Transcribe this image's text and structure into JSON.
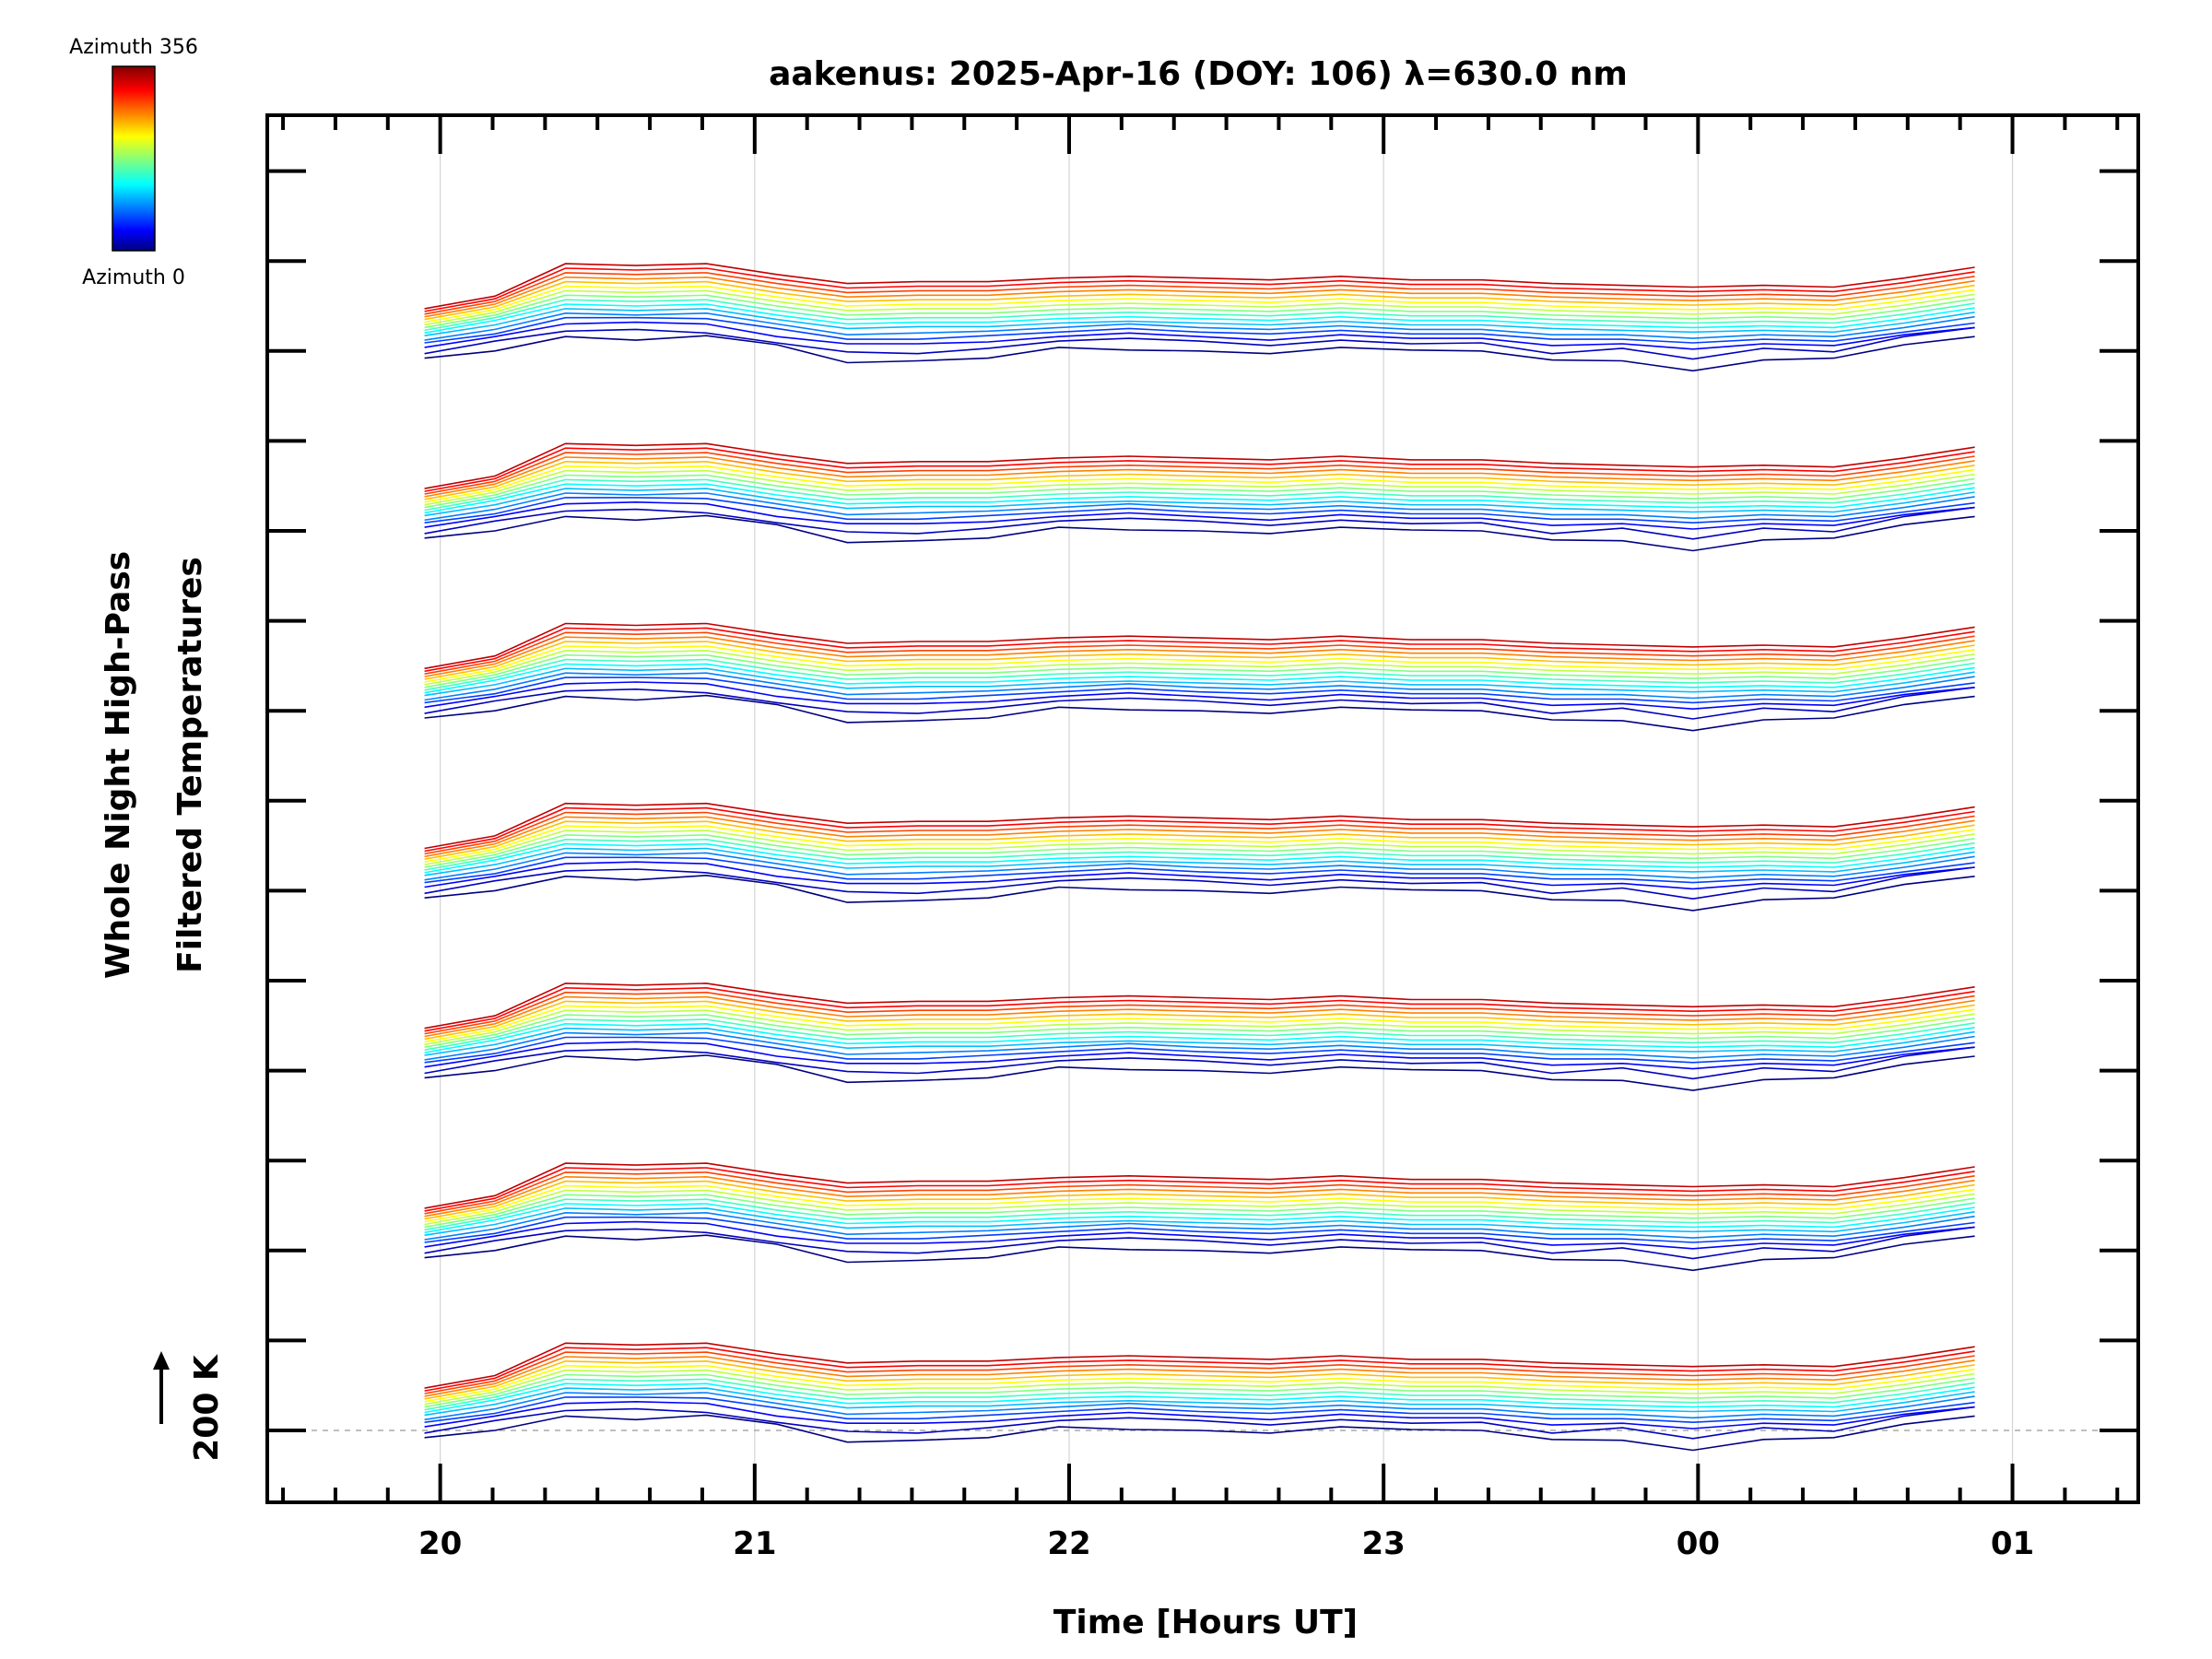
{
  "chart_data": {
    "type": "line",
    "title": "aakenus: 2025-Apr-16 (DOY: 106) λ=630.0 nm",
    "xlabel": "Time [Hours UT]",
    "ylabel_lines": [
      "Whole Night High-Pass",
      "Filtered Temperatures"
    ],
    "scale_label": "200 K",
    "colorbar": {
      "top_label": "Azimuth 356",
      "bottom_label": "Azimuth 0",
      "min": 0,
      "max": 356
    },
    "x_ticks": [
      "20",
      "21",
      "22",
      "23",
      "00",
      "01"
    ],
    "x_tick_hours": [
      20,
      21,
      22,
      23,
      24,
      25
    ],
    "xlim_hours": [
      19.45,
      25.4
    ],
    "data_start_hour": 19.95,
    "data_end_hour": 24.88,
    "y_major_tick_count": 15,
    "n_groups": 7,
    "azimuths_per_group": 16,
    "group_step_k": 200,
    "traces": [
      {
        "group": 0,
        "azimuth": 0,
        "values": [
          -8,
          0,
          16,
          12,
          17,
          7,
          -13,
          -11,
          -8,
          4,
          1,
          0,
          -3,
          4,
          1,
          0,
          -10,
          -11,
          -22,
          -10,
          -8,
          7,
          16
        ]
      },
      {
        "group": 0,
        "azimuth": 22,
        "values": [
          -4,
          10,
          21,
          23,
          19,
          8,
          -2,
          -4,
          2,
          10,
          13,
          10,
          5,
          11,
          7,
          8,
          -4,
          2,
          -10,
          2,
          -2,
          15,
          25
        ]
      },
      {
        "group": 0,
        "azimuth": 45,
        "values": [
          2,
          14,
          28,
          30,
          28,
          14,
          6,
          6,
          8,
          14,
          18,
          14,
          10,
          16,
          12,
          12,
          4,
          6,
          0,
          6,
          4,
          16,
          24
        ]
      },
      {
        "group": 0,
        "azimuth": 67,
        "values": [
          6,
          16,
          34,
          34,
          33,
          22,
          10,
          10,
          14,
          18,
          22,
          18,
          16,
          20,
          16,
          16,
          10,
          10,
          6,
          10,
          8,
          18,
          28
        ]
      },
      {
        "group": 0,
        "azimuth": 89,
        "values": [
          8,
          20,
          38,
          36,
          38,
          26,
          14,
          16,
          18,
          22,
          26,
          22,
          20,
          24,
          20,
          20,
          14,
          14,
          10,
          14,
          12,
          22,
          34
        ]
      },
      {
        "group": 0,
        "azimuth": 111,
        "values": [
          12,
          24,
          42,
          40,
          42,
          30,
          20,
          22,
          22,
          26,
          28,
          26,
          24,
          28,
          24,
          24,
          20,
          18,
          16,
          18,
          16,
          26,
          38
        ]
      },
      {
        "group": 0,
        "azimuth": 134,
        "values": [
          14,
          28,
          46,
          44,
          46,
          34,
          24,
          26,
          26,
          30,
          32,
          30,
          28,
          32,
          28,
          28,
          24,
          22,
          20,
          22,
          20,
          30,
          42
        ]
      },
      {
        "group": 0,
        "azimuth": 156,
        "values": [
          16,
          30,
          50,
          48,
          50,
          38,
          28,
          30,
          30,
          34,
          36,
          34,
          32,
          36,
          32,
          32,
          28,
          26,
          24,
          26,
          24,
          34,
          46
        ]
      },
      {
        "group": 0,
        "azimuth": 178,
        "values": [
          18,
          32,
          54,
          52,
          54,
          42,
          32,
          34,
          34,
          38,
          40,
          38,
          36,
          40,
          36,
          36,
          32,
          30,
          28,
          30,
          28,
          38,
          50
        ]
      },
      {
        "group": 0,
        "azimuth": 200,
        "values": [
          20,
          34,
          58,
          56,
          58,
          46,
          36,
          38,
          38,
          42,
          44,
          42,
          40,
          44,
          40,
          40,
          36,
          34,
          32,
          34,
          32,
          42,
          54
        ]
      },
      {
        "group": 0,
        "azimuth": 223,
        "values": [
          22,
          36,
          62,
          60,
          62,
          50,
          40,
          42,
          42,
          46,
          48,
          46,
          44,
          48,
          44,
          44,
          40,
          38,
          36,
          38,
          36,
          46,
          58
        ]
      },
      {
        "group": 0,
        "azimuth": 245,
        "values": [
          24,
          38,
          66,
          64,
          66,
          54,
          44,
          46,
          46,
          50,
          52,
          50,
          48,
          52,
          48,
          48,
          44,
          42,
          40,
          42,
          40,
          50,
          62
        ]
      },
      {
        "group": 0,
        "azimuth": 267,
        "values": [
          26,
          40,
          70,
          68,
          70,
          58,
          48,
          50,
          50,
          54,
          56,
          54,
          52,
          56,
          52,
          52,
          48,
          46,
          44,
          46,
          44,
          54,
          66
        ]
      },
      {
        "group": 0,
        "azimuth": 289,
        "values": [
          28,
          42,
          74,
          72,
          74,
          62,
          52,
          54,
          54,
          58,
          60,
          58,
          56,
          60,
          56,
          56,
          52,
          50,
          48,
          50,
          48,
          58,
          70
        ]
      },
      {
        "group": 0,
        "azimuth": 312,
        "values": [
          30,
          44,
          78,
          76,
          78,
          66,
          56,
          58,
          58,
          62,
          64,
          62,
          60,
          64,
          60,
          60,
          56,
          54,
          52,
          54,
          52,
          62,
          74
        ]
      },
      {
        "group": 0,
        "azimuth": 334,
        "values": [
          32,
          46,
          82,
          80,
          82,
          70,
          60,
          62,
          62,
          66,
          68,
          66,
          64,
          68,
          64,
          64,
          60,
          58,
          56,
          58,
          56,
          66,
          78
        ]
      }
    ]
  }
}
